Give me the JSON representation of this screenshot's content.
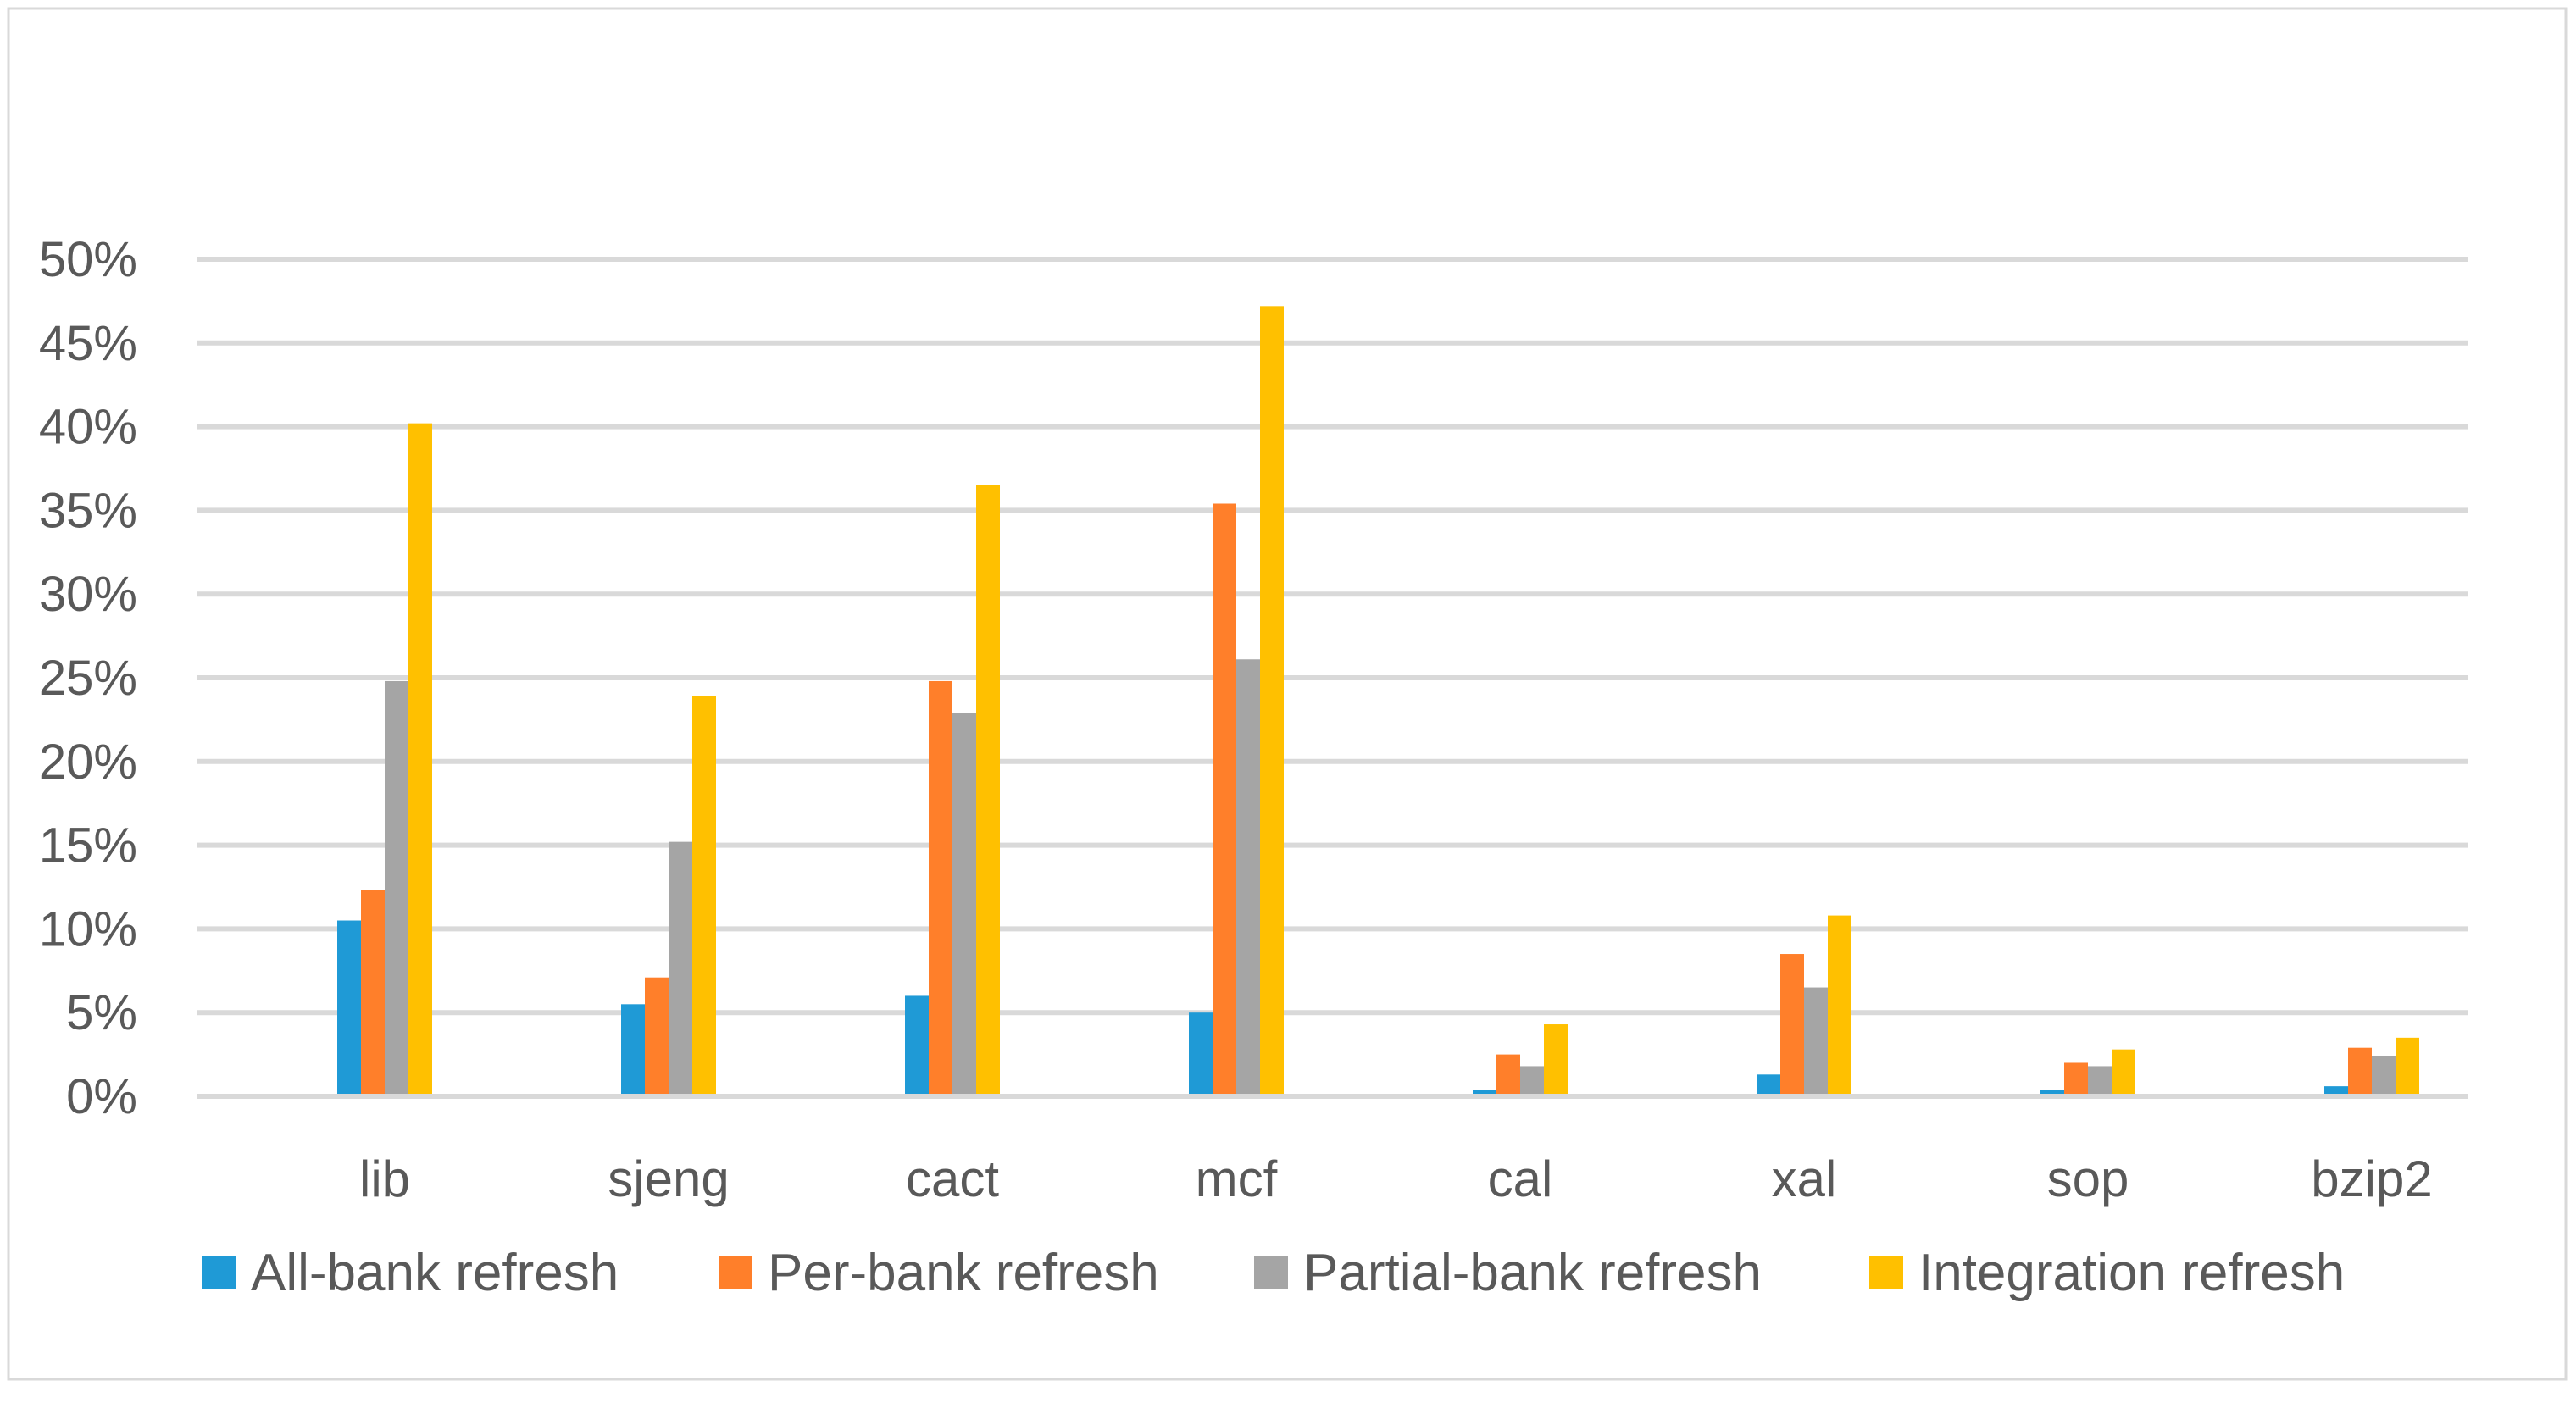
{
  "chart_data": {
    "type": "bar",
    "title": "",
    "xlabel": "",
    "ylabel": "",
    "categories": [
      "lib",
      "sjeng",
      "cact",
      "mcf",
      "cal",
      "xal",
      "sop",
      "bzip2"
    ],
    "ylim": [
      0,
      50
    ],
    "y_ticks": [
      "0%",
      "5%",
      "10%",
      "15%",
      "20%",
      "25%",
      "30%",
      "35%",
      "40%",
      "45%",
      "50%"
    ],
    "grid": true,
    "legend_position": "bottom",
    "series": [
      {
        "name": "All-bank refresh",
        "color": "#1F9AD6",
        "values": [
          10.5,
          5.5,
          6.0,
          5.0,
          0.4,
          1.3,
          0.4,
          0.6
        ]
      },
      {
        "name": "Per-bank refresh",
        "color": "#FF7F2A",
        "values": [
          12.3,
          7.1,
          24.8,
          35.4,
          2.5,
          8.5,
          2.0,
          2.9
        ]
      },
      {
        "name": "Partial-bank refresh",
        "color": "#A5A5A5",
        "values": [
          24.8,
          15.2,
          22.9,
          26.1,
          1.8,
          6.5,
          1.8,
          2.4
        ]
      },
      {
        "name": "Integration refresh",
        "color": "#FFC000",
        "values": [
          40.2,
          23.9,
          36.5,
          47.2,
          4.3,
          10.8,
          2.8,
          3.5
        ]
      }
    ]
  }
}
